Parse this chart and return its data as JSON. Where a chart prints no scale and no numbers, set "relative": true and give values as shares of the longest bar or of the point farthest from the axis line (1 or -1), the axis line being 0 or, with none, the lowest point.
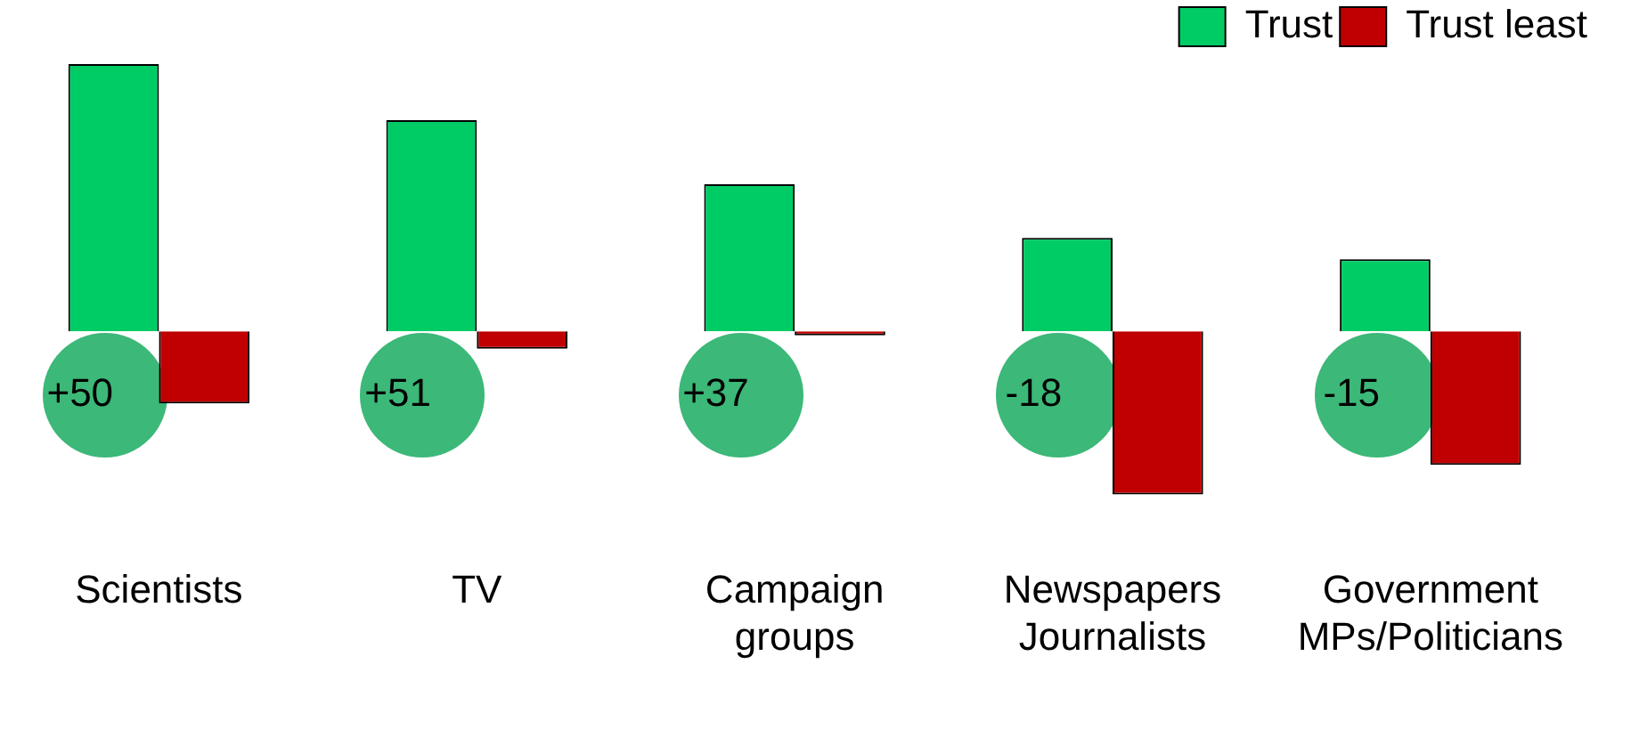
{
  "chart_data": {
    "type": "bar",
    "relative": true,
    "categories": [
      "Scientists",
      "TV",
      "Campaign\ngroups",
      "Newspapers\nJournalists",
      "Government\nMPs/Politicians"
    ],
    "series": [
      {
        "name": "Trust",
        "color": "#00cc66",
        "values": [
          1,
          0.79,
          0.55,
          0.35,
          0.27
        ]
      },
      {
        "name": "Trust least",
        "color": "#c00000",
        "values": [
          -0.27,
          -0.065,
          -0.015,
          -0.61,
          -0.5
        ]
      }
    ],
    "annotations": [
      "+50",
      "+51",
      "+37",
      "-18",
      "-15"
    ],
    "legend": "top right",
    "grid": false
  }
}
